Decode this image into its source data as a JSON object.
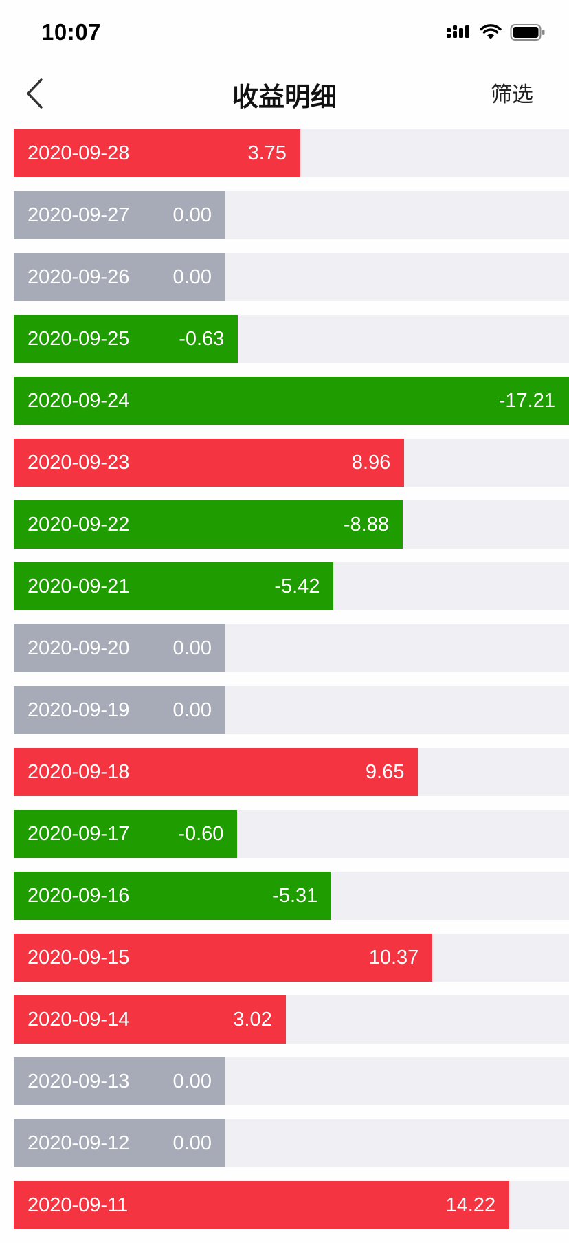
{
  "status_bar": {
    "time": "10:07"
  },
  "nav": {
    "title": "收益明细",
    "filter_label": "筛选"
  },
  "colors": {
    "positive": "#f43440",
    "negative": "#1e9c00",
    "zero": "#a7abb7",
    "track": "#efeff4"
  },
  "entries": [
    {
      "date": "2020-09-28",
      "value": "3.75"
    },
    {
      "date": "2020-09-27",
      "value": "0.00"
    },
    {
      "date": "2020-09-26",
      "value": "0.00"
    },
    {
      "date": "2020-09-25",
      "value": "-0.63"
    },
    {
      "date": "2020-09-24",
      "value": "-17.21"
    },
    {
      "date": "2020-09-23",
      "value": "8.96"
    },
    {
      "date": "2020-09-22",
      "value": "-8.88"
    },
    {
      "date": "2020-09-21",
      "value": "-5.42"
    },
    {
      "date": "2020-09-20",
      "value": "0.00"
    },
    {
      "date": "2020-09-19",
      "value": "0.00"
    },
    {
      "date": "2020-09-18",
      "value": "9.65"
    },
    {
      "date": "2020-09-17",
      "value": "-0.60"
    },
    {
      "date": "2020-09-16",
      "value": "-5.31"
    },
    {
      "date": "2020-09-15",
      "value": "10.37"
    },
    {
      "date": "2020-09-14",
      "value": "3.02"
    },
    {
      "date": "2020-09-13",
      "value": "0.00"
    },
    {
      "date": "2020-09-12",
      "value": "0.00"
    },
    {
      "date": "2020-09-11",
      "value": "14.22"
    }
  ]
}
